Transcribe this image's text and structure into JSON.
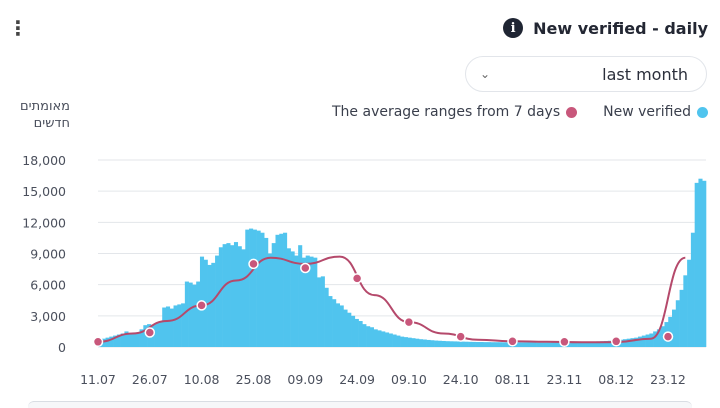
{
  "header": {
    "title": "New verified - daily",
    "info_icon": "info-icon",
    "more_icon": "more-vertical-icon",
    "more_glyph": "⋮",
    "info_glyph": "i"
  },
  "range_select": {
    "value": "last month",
    "chevron_glyph": "⌄"
  },
  "colors": {
    "bars": "#50c4ee",
    "average_line": "#b5496b",
    "average_dot": "#c8577b",
    "grid": "#e3e6ea",
    "axis_text": "#4a4f5c"
  },
  "chart_data": {
    "type": "bar",
    "title": "New verified - daily",
    "ylabel": "מאומתים חדשים",
    "ylim": [
      0,
      18000
    ],
    "yticks": [
      0,
      3000,
      6000,
      9000,
      12000,
      15000,
      18000
    ],
    "ytick_labels": [
      "0",
      "3,000",
      "6,000",
      "9,000",
      "12,000",
      "15,000",
      "18,000"
    ],
    "xtick_labels": [
      "11.07",
      "26.07",
      "10.08",
      "25.08",
      "09.09",
      "24.09",
      "09.10",
      "24.10",
      "08.11",
      "23.11",
      "08.12",
      "23.12"
    ],
    "grid": true,
    "legend_position": "top-right",
    "series": [
      {
        "name": "New verified",
        "kind": "bar",
        "color": "#50c4ee",
        "values": [
          600,
          800,
          900,
          1000,
          1100,
          1200,
          1300,
          1500,
          1350,
          1400,
          1400,
          1700,
          2100,
          2200,
          2100,
          2300,
          2400,
          3800,
          3900,
          3700,
          4000,
          4100,
          4200,
          6300,
          6200,
          6000,
          6300,
          8700,
          8400,
          7900,
          8100,
          8800,
          9600,
          9900,
          10000,
          9800,
          10100,
          9700,
          9400,
          11300,
          11400,
          11300,
          11200,
          11000,
          10500,
          9000,
          10000,
          10800,
          10900,
          11000,
          9500,
          9200,
          8800,
          9800,
          8600,
          8800,
          8700,
          8600,
          6700,
          6800,
          5700,
          4900,
          4600,
          4200,
          4000,
          3600,
          3300,
          3000,
          2700,
          2500,
          2200,
          2000,
          1900,
          1700,
          1600,
          1500,
          1400,
          1300,
          1200,
          1100,
          1000,
          950,
          900,
          850,
          800,
          750,
          720,
          680,
          650,
          620,
          600,
          580,
          560,
          550,
          540,
          530,
          520,
          510,
          500,
          490,
          480,
          480,
          470,
          470,
          460,
          460,
          460,
          450,
          450,
          440,
          440,
          440,
          430,
          430,
          430,
          430,
          420,
          420,
          420,
          420,
          430,
          430,
          430,
          440,
          450,
          450,
          460,
          470,
          480,
          500,
          510,
          520,
          540,
          560,
          580,
          600,
          620,
          650,
          700,
          750,
          800,
          850,
          900,
          1000,
          1100,
          1200,
          1300,
          1500,
          1700,
          2000,
          2400,
          2900,
          3600,
          4500,
          5500,
          6900,
          8400,
          11000,
          15800,
          16200,
          16000
        ]
      },
      {
        "name": "The average ranges from 7 days",
        "kind": "line",
        "color": "#b5496b",
        "x_dates": [
          "11.07",
          "21.07",
          "31.07",
          "10.08",
          "20.08",
          "30.08",
          "09.09",
          "19.09",
          "29.09",
          "09.10",
          "19.10",
          "29.10",
          "08.11",
          "18.11",
          "28.11",
          "08.12",
          "18.12",
          "28.12"
        ],
        "values": [
          500,
          1300,
          2500,
          4000,
          6400,
          8600,
          8000,
          8700,
          5000,
          2400,
          1300,
          700,
          550,
          500,
          450,
          470,
          800,
          8600
        ],
        "markers": [
          {
            "date": "11.07",
            "value": 500
          },
          {
            "date": "26.07",
            "value": 1400
          },
          {
            "date": "10.08",
            "value": 4000
          },
          {
            "date": "25.08",
            "value": 8000
          },
          {
            "date": "09.09",
            "value": 7600
          },
          {
            "date": "24.09",
            "value": 6600
          },
          {
            "date": "09.10",
            "value": 2400
          },
          {
            "date": "24.10",
            "value": 1000
          },
          {
            "date": "08.11",
            "value": 550
          },
          {
            "date": "23.11",
            "value": 500
          },
          {
            "date": "08.12",
            "value": 550
          },
          {
            "date": "23.12",
            "value": 1000
          }
        ]
      }
    ]
  }
}
